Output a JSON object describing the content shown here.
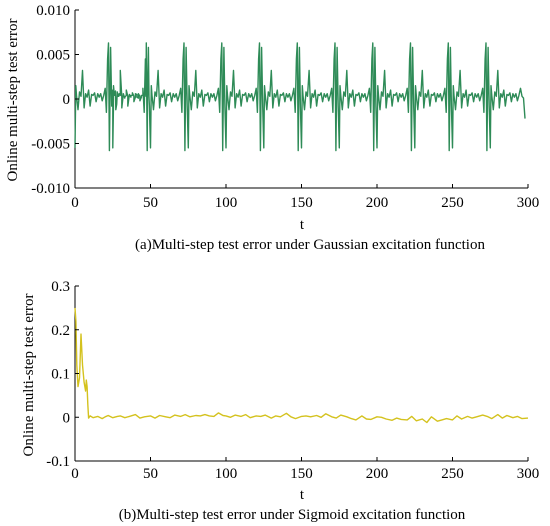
{
  "charts": [
    {
      "type": "line",
      "caption": "(a)Multi-step test error under Gaussian excitation function",
      "xlabel": "t",
      "ylabel": "Online multi-step test error",
      "xlim": [
        0,
        300
      ],
      "ylim": [
        -0.01,
        0.01
      ],
      "xticks": [
        0,
        50,
        100,
        150,
        200,
        250,
        300
      ],
      "xtick_labels": [
        "0",
        "50",
        "100",
        "150",
        "200",
        "250",
        "300"
      ],
      "yticks": [
        -0.01,
        -0.005,
        0,
        0.005,
        0.01
      ],
      "ytick_labels": [
        "-0.010",
        "-0.005",
        "0",
        "0.005",
        "0.010"
      ],
      "grid": false,
      "series_color": "#2e8b57",
      "period": 25,
      "spike_starts": [
        0,
        25,
        50,
        75,
        100,
        125,
        150,
        175,
        200,
        225,
        250,
        275
      ],
      "series": [
        {
          "x": [
            0,
            0.5,
            1,
            2,
            3,
            4,
            5,
            6,
            7,
            8,
            9,
            10,
            11,
            12,
            13,
            14,
            15,
            16,
            17,
            18,
            19,
            20,
            20.8,
            21.6,
            22.2,
            22.8,
            23.6,
            24.3,
            25,
            25.4,
            26,
            26.8,
            27.6,
            28.4,
            29.2,
            30,
            31,
            32,
            33,
            34,
            35,
            36,
            37,
            38,
            39,
            40,
            41,
            42,
            43,
            44,
            45,
            46,
            47,
            48,
            49,
            50,
            296,
            297,
            298
          ],
          "y": [
            -0.0055,
            0.0015,
            0.0004,
            -0.0012,
            0.0008,
            0.0003,
            0.0032,
            -0.001,
            0.0006,
            0.0002,
            0.001,
            -0.0008,
            0.0005,
            0.0004,
            0.0007,
            -0.0003,
            0.0006,
            0.0002,
            0.0006,
            -0.0002,
            0.0004,
            0.0012,
            -0.0015,
            0.0045,
            0.0063,
            -0.0058,
            0.0058,
            -0.0008,
            0.001,
            -0.0012,
            0.0005,
            0.0009,
            -0.0006,
            0.0003,
            0.0006,
            0.0004,
            0.0002,
            0.0005,
            0.0001,
            0.0004,
            0.0003,
            0.0005,
            0.0002,
            0.0004,
            0.0003,
            0.0002,
            0.0005,
            0.0001,
            0.0003,
            0.0002,
            0.0004,
            0.0002,
            0.0003,
            0.0001,
            0.0002,
            0.0001,
            0.0003,
            0.0001,
            -0.0022
          ]
        }
      ]
    },
    {
      "type": "line",
      "caption": "(b)Multi-step test error under Sigmoid excitation function",
      "xlabel": "t",
      "ylabel": "Online multi-step test error",
      "xlim": [
        0,
        300
      ],
      "ylim": [
        -0.1,
        0.3
      ],
      "xticks": [
        0,
        50,
        100,
        150,
        200,
        250,
        300
      ],
      "xtick_labels": [
        "0",
        "50",
        "100",
        "150",
        "200",
        "250",
        "300"
      ],
      "yticks": [
        -0.1,
        0,
        0.1,
        0.2,
        0.3
      ],
      "ytick_labels": [
        "-0.1",
        "0",
        "0.1",
        "0.2",
        "0.3"
      ],
      "grid": false,
      "series_color": "#d4c21e",
      "series": [
        {
          "x": [
            0,
            0.6,
            1.2,
            2,
            3,
            4,
            5,
            6,
            7,
            7.5,
            8,
            8.5,
            9,
            10,
            12,
            15,
            18,
            20,
            22,
            25,
            28,
            30,
            33,
            36,
            40,
            43,
            46,
            50,
            53,
            56,
            60,
            63,
            66,
            70,
            73,
            76,
            80,
            83,
            86,
            89,
            92,
            95,
            98,
            100,
            103,
            106,
            110,
            113,
            116,
            120,
            123,
            126,
            130,
            133,
            136,
            140,
            143,
            146,
            150,
            153,
            156,
            160,
            163,
            166,
            170,
            173,
            176,
            180,
            183,
            186,
            190,
            193,
            196,
            200,
            203,
            206,
            210,
            213,
            216,
            220,
            223,
            226,
            230,
            233,
            236,
            240,
            243,
            246,
            250,
            253,
            256,
            260,
            263,
            266,
            270,
            273,
            276,
            280,
            283,
            286,
            290,
            293,
            296,
            300
          ],
          "y": [
            0.25,
            0.22,
            0.12,
            0.07,
            0.09,
            0.19,
            0.12,
            0.08,
            0.06,
            0.085,
            0.07,
            0.03,
            -0.002,
            0.003,
            -0.001,
            0.002,
            -0.003,
            0.001,
            0.004,
            -0.001,
            0.002,
            0.003,
            -0.001,
            0.002,
            0.006,
            -0.002,
            0.001,
            0.003,
            -0.002,
            0.004,
            0.001,
            -0.001,
            0.005,
            0.002,
            0.006,
            0.001,
            0.004,
            0.003,
            0.006,
            0.003,
            0.002,
            0.01,
            0.004,
            0.003,
            0.0,
            0.005,
            0.002,
            0.006,
            -0.001,
            0.003,
            0.002,
            0.005,
            -0.002,
            0.003,
            0.001,
            0.009,
            0.001,
            -0.003,
            0.002,
            0.003,
            0.001,
            0.004,
            0.0,
            0.008,
            0.001,
            -0.002,
            0.005,
            0.001,
            -0.003,
            -0.006,
            0.003,
            -0.004,
            -0.005,
            0.001,
            0.0,
            -0.004,
            -0.007,
            -0.002,
            -0.005,
            -0.006,
            0.002,
            -0.008,
            -0.004,
            -0.012,
            0.001,
            -0.009,
            -0.006,
            -0.003,
            -0.006,
            0.003,
            -0.004,
            0.002,
            -0.002,
            0.001,
            0.005,
            0.002,
            -0.003,
            0.006,
            -0.002,
            0.004,
            -0.001,
            0.002,
            -0.003,
            -0.002
          ]
        }
      ]
    }
  ]
}
